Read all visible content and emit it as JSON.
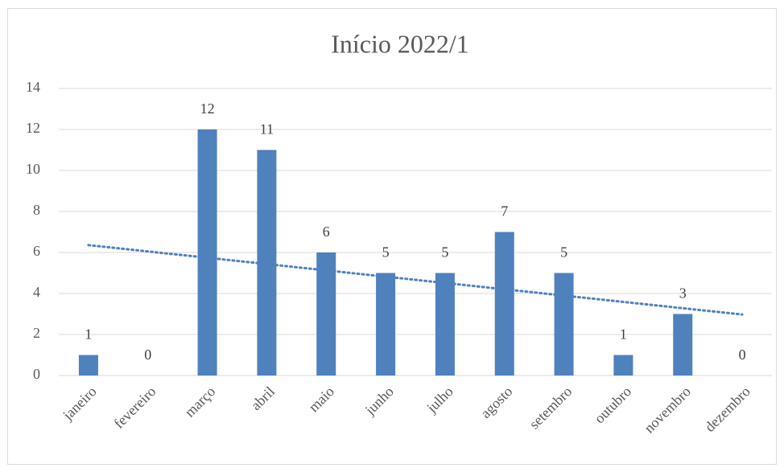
{
  "chart_data": {
    "type": "bar",
    "title": "Início 2022/1",
    "categories": [
      "janeiro",
      "fevereiro",
      "março",
      "abril",
      "maio",
      "junho",
      "julho",
      "agosto",
      "setembro",
      "outubro",
      "novembro",
      "dezembro"
    ],
    "values": [
      1,
      0,
      12,
      11,
      6,
      5,
      5,
      7,
      5,
      1,
      3,
      0
    ],
    "color": "#4f81bd",
    "ylim": [
      0,
      14
    ],
    "yticks": [
      0,
      2,
      4,
      6,
      8,
      10,
      12,
      14
    ],
    "grid": true,
    "trendline": "linear"
  }
}
